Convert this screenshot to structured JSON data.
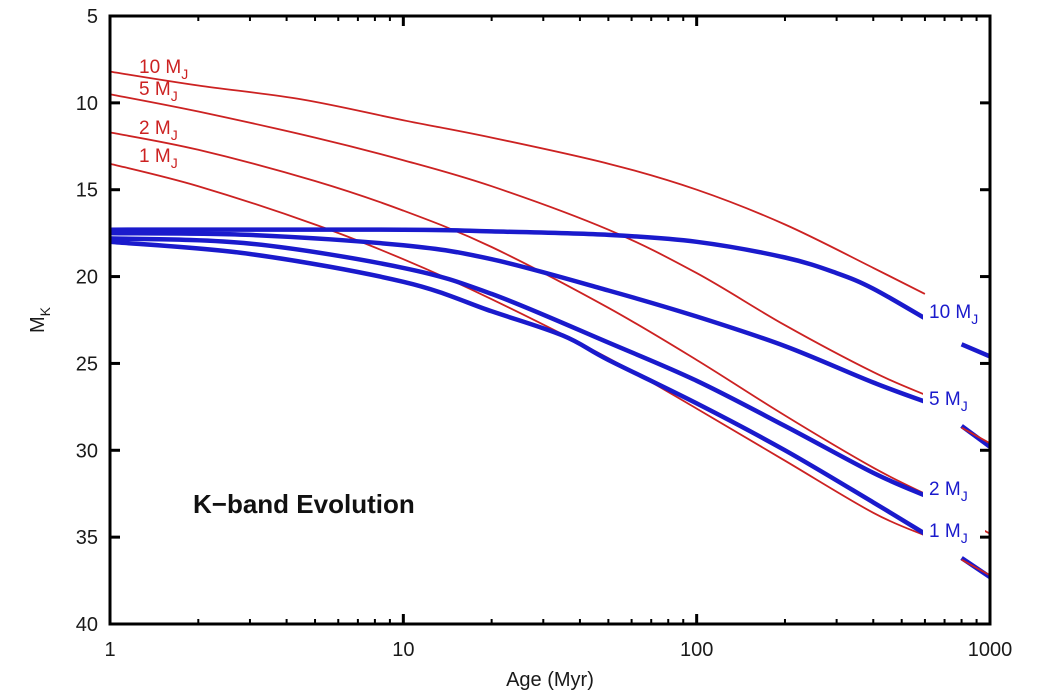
{
  "chart_data": {
    "type": "line",
    "title": "",
    "xlabel": "Age (Myr)",
    "ylabel": "M",
    "ylabel_sub": "K",
    "xscale": "log",
    "xlim": [
      1,
      1000
    ],
    "ylim": [
      5,
      40
    ],
    "y_inverted": true,
    "grid": false,
    "x_ticks": [
      1,
      10,
      100,
      1000
    ],
    "x_tick_labels": [
      "1",
      "10",
      "100",
      "1000"
    ],
    "y_ticks": [
      5,
      10,
      15,
      20,
      25,
      30,
      35,
      40
    ],
    "y_tick_labels": [
      "5",
      "10",
      "15",
      "20",
      "25",
      "30",
      "35",
      "40"
    ],
    "annotation": "K−band Evolution",
    "colors": {
      "red": "#cc2222",
      "blue": "#1a1acc",
      "axis": "#000000"
    },
    "red_labels": [
      {
        "text": "10 M",
        "sub": "J",
        "mass": 10
      },
      {
        "text": "5 M",
        "sub": "J",
        "mass": 5
      },
      {
        "text": "2 M",
        "sub": "J",
        "mass": 2
      },
      {
        "text": "1 M",
        "sub": "J",
        "mass": 1
      }
    ],
    "blue_labels": [
      {
        "text": "10 M",
        "sub": "J",
        "mass": 10
      },
      {
        "text": "5 M",
        "sub": "J",
        "mass": 5
      },
      {
        "text": "2 M",
        "sub": "J",
        "mass": 2
      },
      {
        "text": "1 M",
        "sub": "J",
        "mass": 1
      }
    ],
    "series": [
      {
        "color": "red",
        "mass": 10,
        "x": [
          1,
          2,
          4.5,
          10,
          20,
          50,
          100,
          200,
          400,
          600
        ],
        "y": [
          8.2,
          9.0,
          9.8,
          11.0,
          12.0,
          13.5,
          15.0,
          17.0,
          19.5,
          21.0
        ]
      },
      {
        "color": "red",
        "mass": 5,
        "x": [
          1,
          2,
          5,
          10,
          20,
          50,
          100,
          200,
          400,
          600
        ],
        "y": [
          9.5,
          10.5,
          12.0,
          13.3,
          14.8,
          17.3,
          19.8,
          22.8,
          25.5,
          26.8
        ]
      },
      {
        "color": "red",
        "mass": 2,
        "x": [
          1,
          2,
          5,
          10,
          20,
          50,
          100,
          200,
          400,
          600
        ],
        "y": [
          11.7,
          12.7,
          14.5,
          16.2,
          18.3,
          21.8,
          24.8,
          28.0,
          31.0,
          32.5
        ]
      },
      {
        "color": "red",
        "mass": 1,
        "x": [
          1,
          2,
          5,
          10,
          20,
          50,
          100,
          200,
          400,
          600
        ],
        "y": [
          13.5,
          14.8,
          17.0,
          19.0,
          21.3,
          24.7,
          27.6,
          30.6,
          33.6,
          34.9
        ]
      },
      {
        "color": "blue",
        "mass": 10,
        "x": [
          1,
          10,
          20,
          50,
          100,
          200,
          300,
          400,
          600
        ],
        "y": [
          17.3,
          17.3,
          17.4,
          17.6,
          18.0,
          18.9,
          19.8,
          20.7,
          22.4
        ]
      },
      {
        "color": "blue",
        "mass": 5,
        "x": [
          1,
          3,
          10,
          20,
          50,
          100,
          200,
          400,
          600
        ],
        "y": [
          17.5,
          17.6,
          18.2,
          19.0,
          20.8,
          22.3,
          24.0,
          26.1,
          27.2
        ]
      },
      {
        "color": "blue",
        "mass": 2,
        "x": [
          1,
          3,
          10,
          20,
          50,
          100,
          200,
          400,
          600
        ],
        "y": [
          17.8,
          18.1,
          19.5,
          21.0,
          23.8,
          26.0,
          28.6,
          31.3,
          32.6
        ]
      },
      {
        "color": "blue",
        "mass": 1,
        "x": [
          1,
          3,
          10,
          20,
          35,
          50,
          100,
          200,
          400,
          600
        ],
        "y": [
          18.0,
          18.7,
          20.3,
          22.0,
          23.4,
          24.8,
          27.3,
          30.0,
          33.0,
          34.8
        ]
      }
    ],
    "edge_segments": [
      {
        "color": "blue",
        "x": [
          800,
          1000
        ],
        "y": [
          23.9,
          24.6
        ]
      },
      {
        "color": "blue",
        "x": [
          800,
          1000
        ],
        "y": [
          28.6,
          29.8
        ]
      },
      {
        "color": "blue",
        "x": [
          800,
          1000
        ],
        "y": [
          36.2,
          37.3
        ]
      },
      {
        "color": "red",
        "x": [
          800,
          1000
        ],
        "y": [
          28.7,
          29.6
        ]
      },
      {
        "color": "red",
        "x": [
          800,
          1000
        ],
        "y": [
          36.3,
          37.2
        ]
      },
      {
        "color": "red",
        "x": [
          950,
          1000
        ],
        "y": [
          34.6,
          34.8
        ]
      }
    ]
  }
}
